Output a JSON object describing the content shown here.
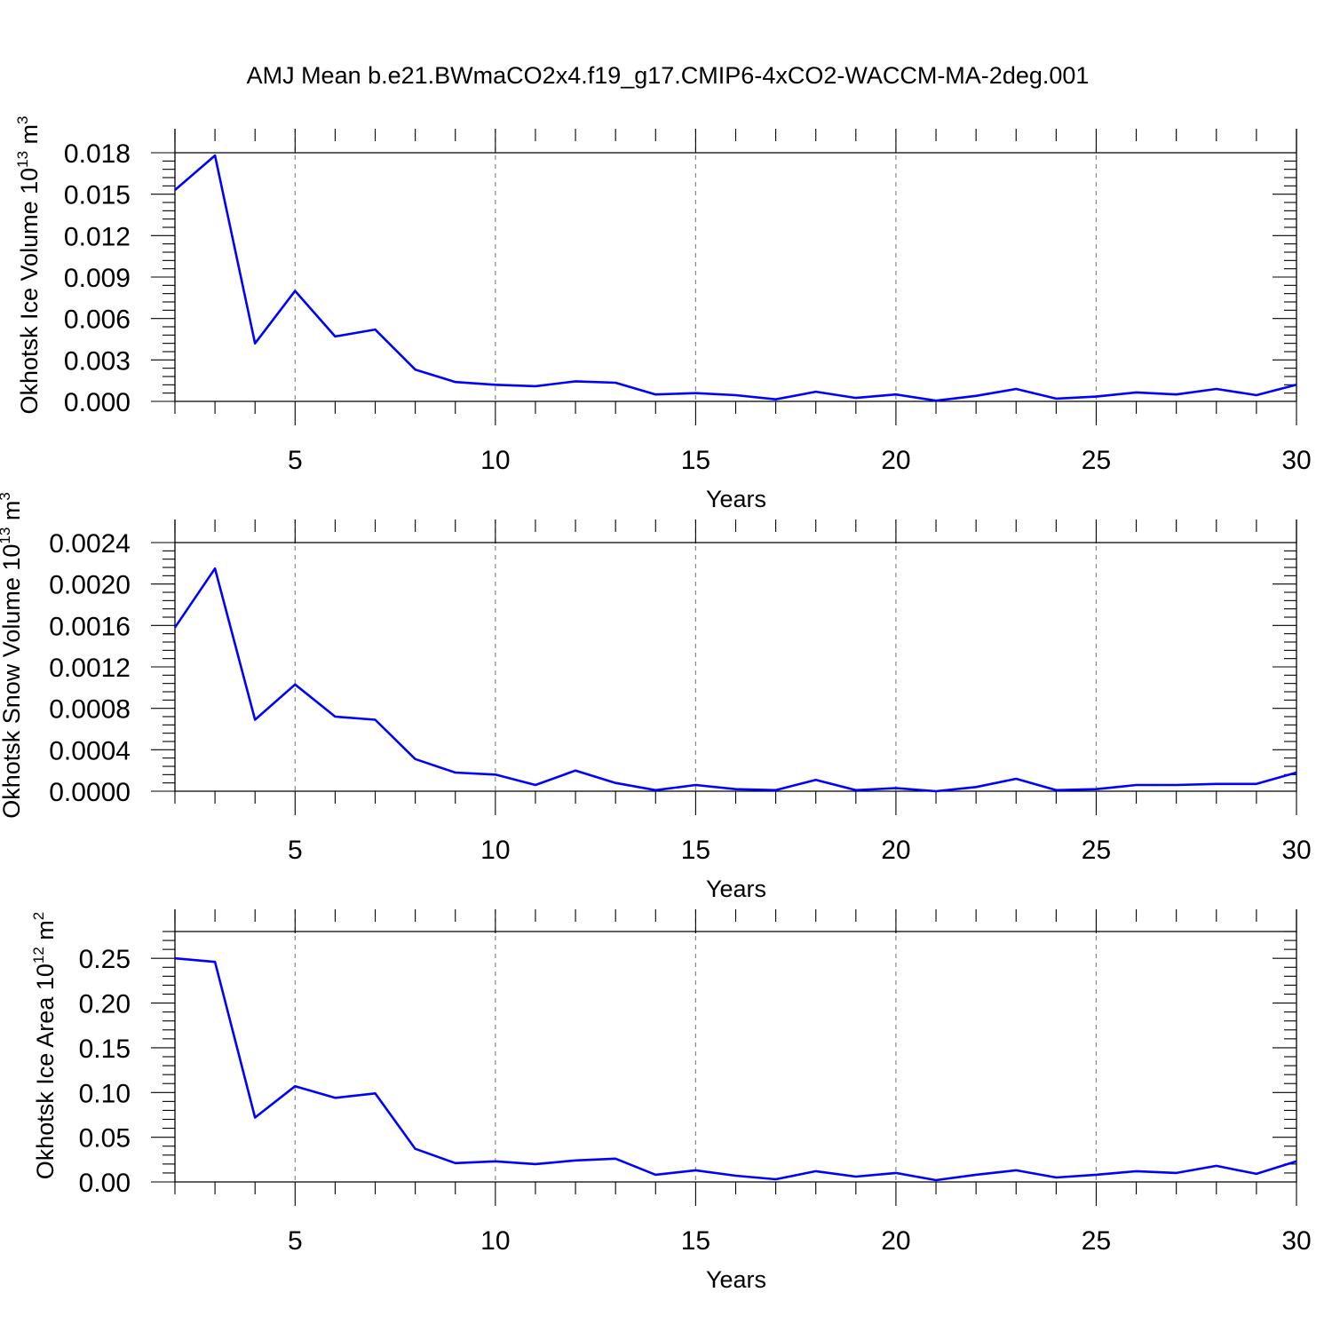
{
  "figure": {
    "title": "AMJ Mean b.e21.BWmaCO2x4.f19_g17.CMIP6-4xCO2-WACCM-MA-2deg.001"
  },
  "chart_data": [
    {
      "type": "line",
      "ylabel": "Okhotsk Ice Volume 10",
      "ylabel_exp": "13",
      "ylabel_unit": "m",
      "ylabel_unit_exp": "3",
      "xlabel": "Years",
      "xlim": [
        2,
        30
      ],
      "ylim": [
        0,
        0.018
      ],
      "xticks": [
        5,
        10,
        15,
        20,
        25,
        30
      ],
      "yticks": [
        0,
        0.003,
        0.006,
        0.009,
        0.012,
        0.015,
        0.018
      ],
      "ytick_labels": [
        "0.000",
        "0.003",
        "0.006",
        "0.009",
        "0.012",
        "0.015",
        "0.018"
      ],
      "grid": "vertical-dashed",
      "line_color": "#0000ff",
      "series": [
        {
          "x": [
            2,
            3,
            4,
            5,
            6,
            7,
            8,
            9,
            10,
            11,
            12,
            13,
            14,
            15,
            16,
            17,
            18,
            19,
            20,
            21,
            22,
            23,
            24,
            25,
            26,
            27,
            28,
            29,
            30
          ],
          "values": [
            0.0153,
            0.0178,
            0.0042,
            0.008,
            0.0047,
            0.0052,
            0.0023,
            0.0014,
            0.0012,
            0.0011,
            0.00145,
            0.00135,
            0.0005,
            0.0006,
            0.00045,
            0.00015,
            0.0007,
            0.00025,
            0.0005,
            5e-05,
            0.0004,
            0.0009,
            0.0002,
            0.00035,
            0.00065,
            0.0005,
            0.0009,
            0.00045,
            0.0012
          ]
        }
      ]
    },
    {
      "type": "line",
      "ylabel": "Okhotsk Snow Volume 10",
      "ylabel_exp": "13",
      "ylabel_unit": "m",
      "ylabel_unit_exp": "3",
      "xlabel": "Years",
      "xlim": [
        2,
        30
      ],
      "ylim": [
        0,
        0.0024
      ],
      "xticks": [
        5,
        10,
        15,
        20,
        25,
        30
      ],
      "yticks": [
        0,
        0.0004,
        0.0008,
        0.0012,
        0.0016,
        0.002,
        0.0024
      ],
      "ytick_labels": [
        "0.0000",
        "0.0004",
        "0.0008",
        "0.0012",
        "0.0016",
        "0.0020",
        "0.0024"
      ],
      "grid": "vertical-dashed",
      "line_color": "#0000ff",
      "series": [
        {
          "x": [
            2,
            3,
            4,
            5,
            6,
            7,
            8,
            9,
            10,
            11,
            12,
            13,
            14,
            15,
            16,
            17,
            18,
            19,
            20,
            21,
            22,
            23,
            24,
            25,
            26,
            27,
            28,
            29,
            30
          ],
          "values": [
            0.00158,
            0.00215,
            0.00069,
            0.00103,
            0.00072,
            0.00069,
            0.00031,
            0.00018,
            0.00016,
            6e-05,
            0.0002,
            8e-05,
            1e-05,
            6e-05,
            2e-05,
            1e-05,
            0.00011,
            1e-05,
            3e-05,
            0.0,
            4e-05,
            0.00012,
            1e-05,
            2e-05,
            6e-05,
            6e-05,
            7e-05,
            7e-05,
            0.00018
          ]
        }
      ]
    },
    {
      "type": "line",
      "ylabel": "Okhotsk Ice Area 10",
      "ylabel_exp": "12",
      "ylabel_unit": "m",
      "ylabel_unit_exp": "2",
      "xlabel": "Years",
      "xlim": [
        2,
        30
      ],
      "ylim": [
        0,
        0.28
      ],
      "xticks": [
        5,
        10,
        15,
        20,
        25,
        30
      ],
      "yticks": [
        0,
        0.05,
        0.1,
        0.15,
        0.2,
        0.25
      ],
      "ytick_labels": [
        "0.00",
        "0.05",
        "0.10",
        "0.15",
        "0.20",
        "0.25"
      ],
      "grid": "vertical-dashed",
      "line_color": "#0000ff",
      "series": [
        {
          "x": [
            2,
            3,
            4,
            5,
            6,
            7,
            8,
            9,
            10,
            11,
            12,
            13,
            14,
            15,
            16,
            17,
            18,
            19,
            20,
            21,
            22,
            23,
            24,
            25,
            26,
            27,
            28,
            29,
            30
          ],
          "values": [
            0.25,
            0.246,
            0.072,
            0.107,
            0.094,
            0.099,
            0.037,
            0.021,
            0.023,
            0.02,
            0.024,
            0.026,
            0.008,
            0.013,
            0.007,
            0.003,
            0.012,
            0.006,
            0.01,
            0.002,
            0.008,
            0.013,
            0.005,
            0.008,
            0.012,
            0.01,
            0.018,
            0.009,
            0.023
          ]
        }
      ]
    }
  ]
}
